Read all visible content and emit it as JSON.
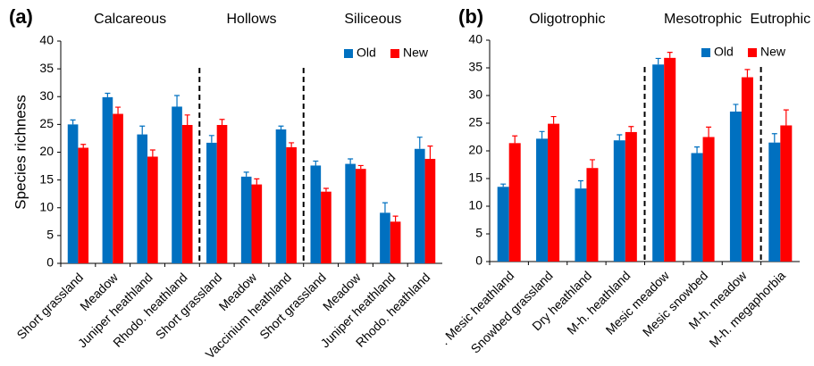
{
  "chart_data": [
    {
      "type": "bar",
      "panel_label": "(a)",
      "y_label": "Species richness",
      "group_labels": [
        "Calcareous",
        "Hollows",
        "Siliceous"
      ],
      "categories": [
        "Short grassland",
        "Meadow",
        "Juniper heathland",
        "Rhodo. heathland",
        "Short grassland",
        "Meadow",
        "Vaccinium heathland",
        "Short grassland",
        "Meadow",
        "Juniper heathland",
        "Rhodo. heathland"
      ],
      "series": [
        {
          "name": "Old",
          "color": "#0070c0",
          "values": [
            25,
            29.9,
            23.2,
            28.2,
            21.7,
            15.6,
            24.1,
            17.6,
            17.9,
            9.1,
            20.6
          ],
          "errors": [
            0.8,
            0.7,
            1.5,
            2.0,
            1.3,
            0.8,
            0.6,
            0.8,
            0.9,
            1.8,
            2.1
          ]
        },
        {
          "name": "New",
          "color": "#ff0000",
          "values": [
            20.8,
            26.9,
            19.2,
            24.9,
            24.9,
            14.2,
            20.9,
            12.9,
            17.0,
            7.5,
            18.8
          ],
          "errors": [
            0.6,
            1.2,
            1.2,
            1.8,
            1.0,
            1.0,
            0.8,
            0.6,
            0.6,
            1.0,
            2.3
          ]
        }
      ],
      "ylim": [
        0,
        40
      ],
      "yticks": [
        0,
        5,
        10,
        15,
        20,
        25,
        30,
        35,
        40
      ],
      "legend": "upper right",
      "grid": false
    },
    {
      "type": "bar",
      "panel_label": "(b)",
      "group_labels": [
        "Oligotrophic",
        "Mesotrophic",
        "Eutrophic"
      ],
      "categories": [
        ". Mesic heathland",
        "Snowbed grassland",
        "Dry heathland",
        "M-h. heathland",
        "Mesic meadow",
        "Mesic snowbed",
        "M-h. meadow",
        "M-h. megaphorbia"
      ],
      "series": [
        {
          "name": "Old",
          "color": "#0070c0",
          "values": [
            13.5,
            22.2,
            13.2,
            21.9,
            35.6,
            19.6,
            27.1,
            21.5
          ],
          "errors": [
            0.5,
            1.3,
            1.4,
            1.0,
            1.1,
            1.1,
            1.3,
            1.6
          ]
        },
        {
          "name": "New",
          "color": "#ff0000",
          "values": [
            21.4,
            24.9,
            16.9,
            23.4,
            36.8,
            22.5,
            33.3,
            24.6
          ],
          "errors": [
            1.3,
            1.3,
            1.5,
            1.0,
            1.0,
            1.8,
            1.4,
            2.8
          ]
        }
      ],
      "ylim": [
        0,
        40
      ],
      "yticks": [
        0,
        5,
        10,
        15,
        20,
        25,
        30,
        35,
        40
      ],
      "legend": "upper right",
      "grid": false
    }
  ]
}
